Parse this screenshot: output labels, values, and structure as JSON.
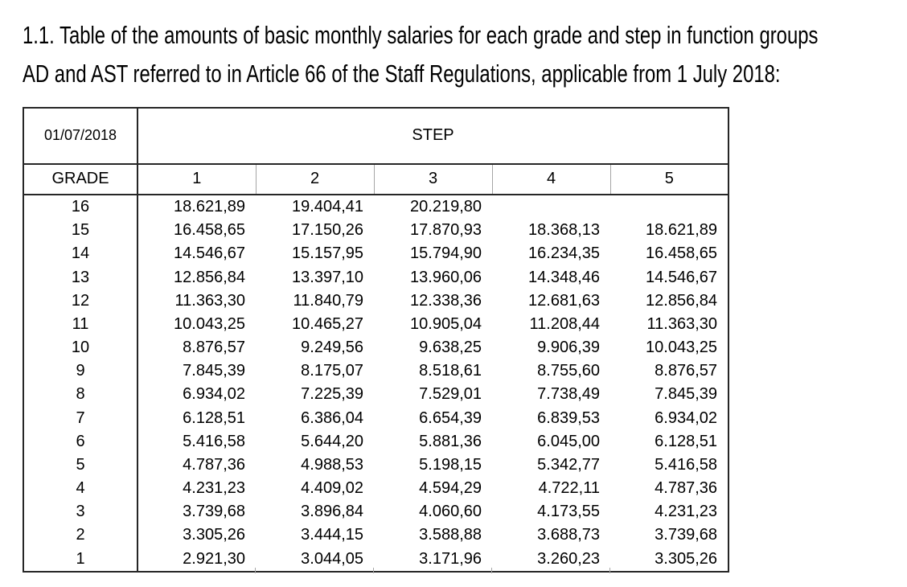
{
  "page": {
    "title_line1": "1.1. Table of the amounts of basic monthly salaries for each grade and step in function groups",
    "title_line2": "AD and AST referred to in Article 66 of the Staff Regulations, applicable from 1 July 2018:"
  },
  "table": {
    "date_label": "01/07/2018",
    "step_label": "STEP",
    "grade_label": "GRADE",
    "step_columns": [
      "1",
      "2",
      "3",
      "4",
      "5"
    ],
    "rows": [
      {
        "grade": "16",
        "values": [
          "18.621,89",
          "19.404,41",
          "20.219,80",
          "",
          ""
        ]
      },
      {
        "grade": "15",
        "values": [
          "16.458,65",
          "17.150,26",
          "17.870,93",
          "18.368,13",
          "18.621,89"
        ]
      },
      {
        "grade": "14",
        "values": [
          "14.546,67",
          "15.157,95",
          "15.794,90",
          "16.234,35",
          "16.458,65"
        ]
      },
      {
        "grade": "13",
        "values": [
          "12.856,84",
          "13.397,10",
          "13.960,06",
          "14.348,46",
          "14.546,67"
        ]
      },
      {
        "grade": "12",
        "values": [
          "11.363,30",
          "11.840,79",
          "12.338,36",
          "12.681,63",
          "12.856,84"
        ]
      },
      {
        "grade": "11",
        "values": [
          "10.043,25",
          "10.465,27",
          "10.905,04",
          "11.208,44",
          "11.363,30"
        ]
      },
      {
        "grade": "10",
        "values": [
          "8.876,57",
          "9.249,56",
          "9.638,25",
          "9.906,39",
          "10.043,25"
        ]
      },
      {
        "grade": "9",
        "values": [
          "7.845,39",
          "8.175,07",
          "8.518,61",
          "8.755,60",
          "8.876,57"
        ]
      },
      {
        "grade": "8",
        "values": [
          "6.934,02",
          "7.225,39",
          "7.529,01",
          "7.738,49",
          "7.845,39"
        ]
      },
      {
        "grade": "7",
        "values": [
          "6.128,51",
          "6.386,04",
          "6.654,39",
          "6.839,53",
          "6.934,02"
        ]
      },
      {
        "grade": "6",
        "values": [
          "5.416,58",
          "5.644,20",
          "5.881,36",
          "6.045,00",
          "6.128,51"
        ]
      },
      {
        "grade": "5",
        "values": [
          "4.787,36",
          "4.988,53",
          "5.198,15",
          "5.342,77",
          "5.416,58"
        ]
      },
      {
        "grade": "4",
        "values": [
          "4.231,23",
          "4.409,02",
          "4.594,29",
          "4.722,11",
          "4.787,36"
        ]
      },
      {
        "grade": "3",
        "values": [
          "3.739,68",
          "3.896,84",
          "4.060,60",
          "4.173,55",
          "4.231,23"
        ]
      },
      {
        "grade": "2",
        "values": [
          "3.305,26",
          "3.444,15",
          "3.588,88",
          "3.688,73",
          "3.739,68"
        ]
      },
      {
        "grade": "1",
        "values": [
          "2.921,30",
          "3.044,05",
          "3.171,96",
          "3.260,23",
          "3.305,26"
        ]
      }
    ]
  },
  "colors": {
    "background": "#ffffff",
    "text": "#000000",
    "border_dark": "#262626",
    "border_light": "#a6a6a6"
  }
}
